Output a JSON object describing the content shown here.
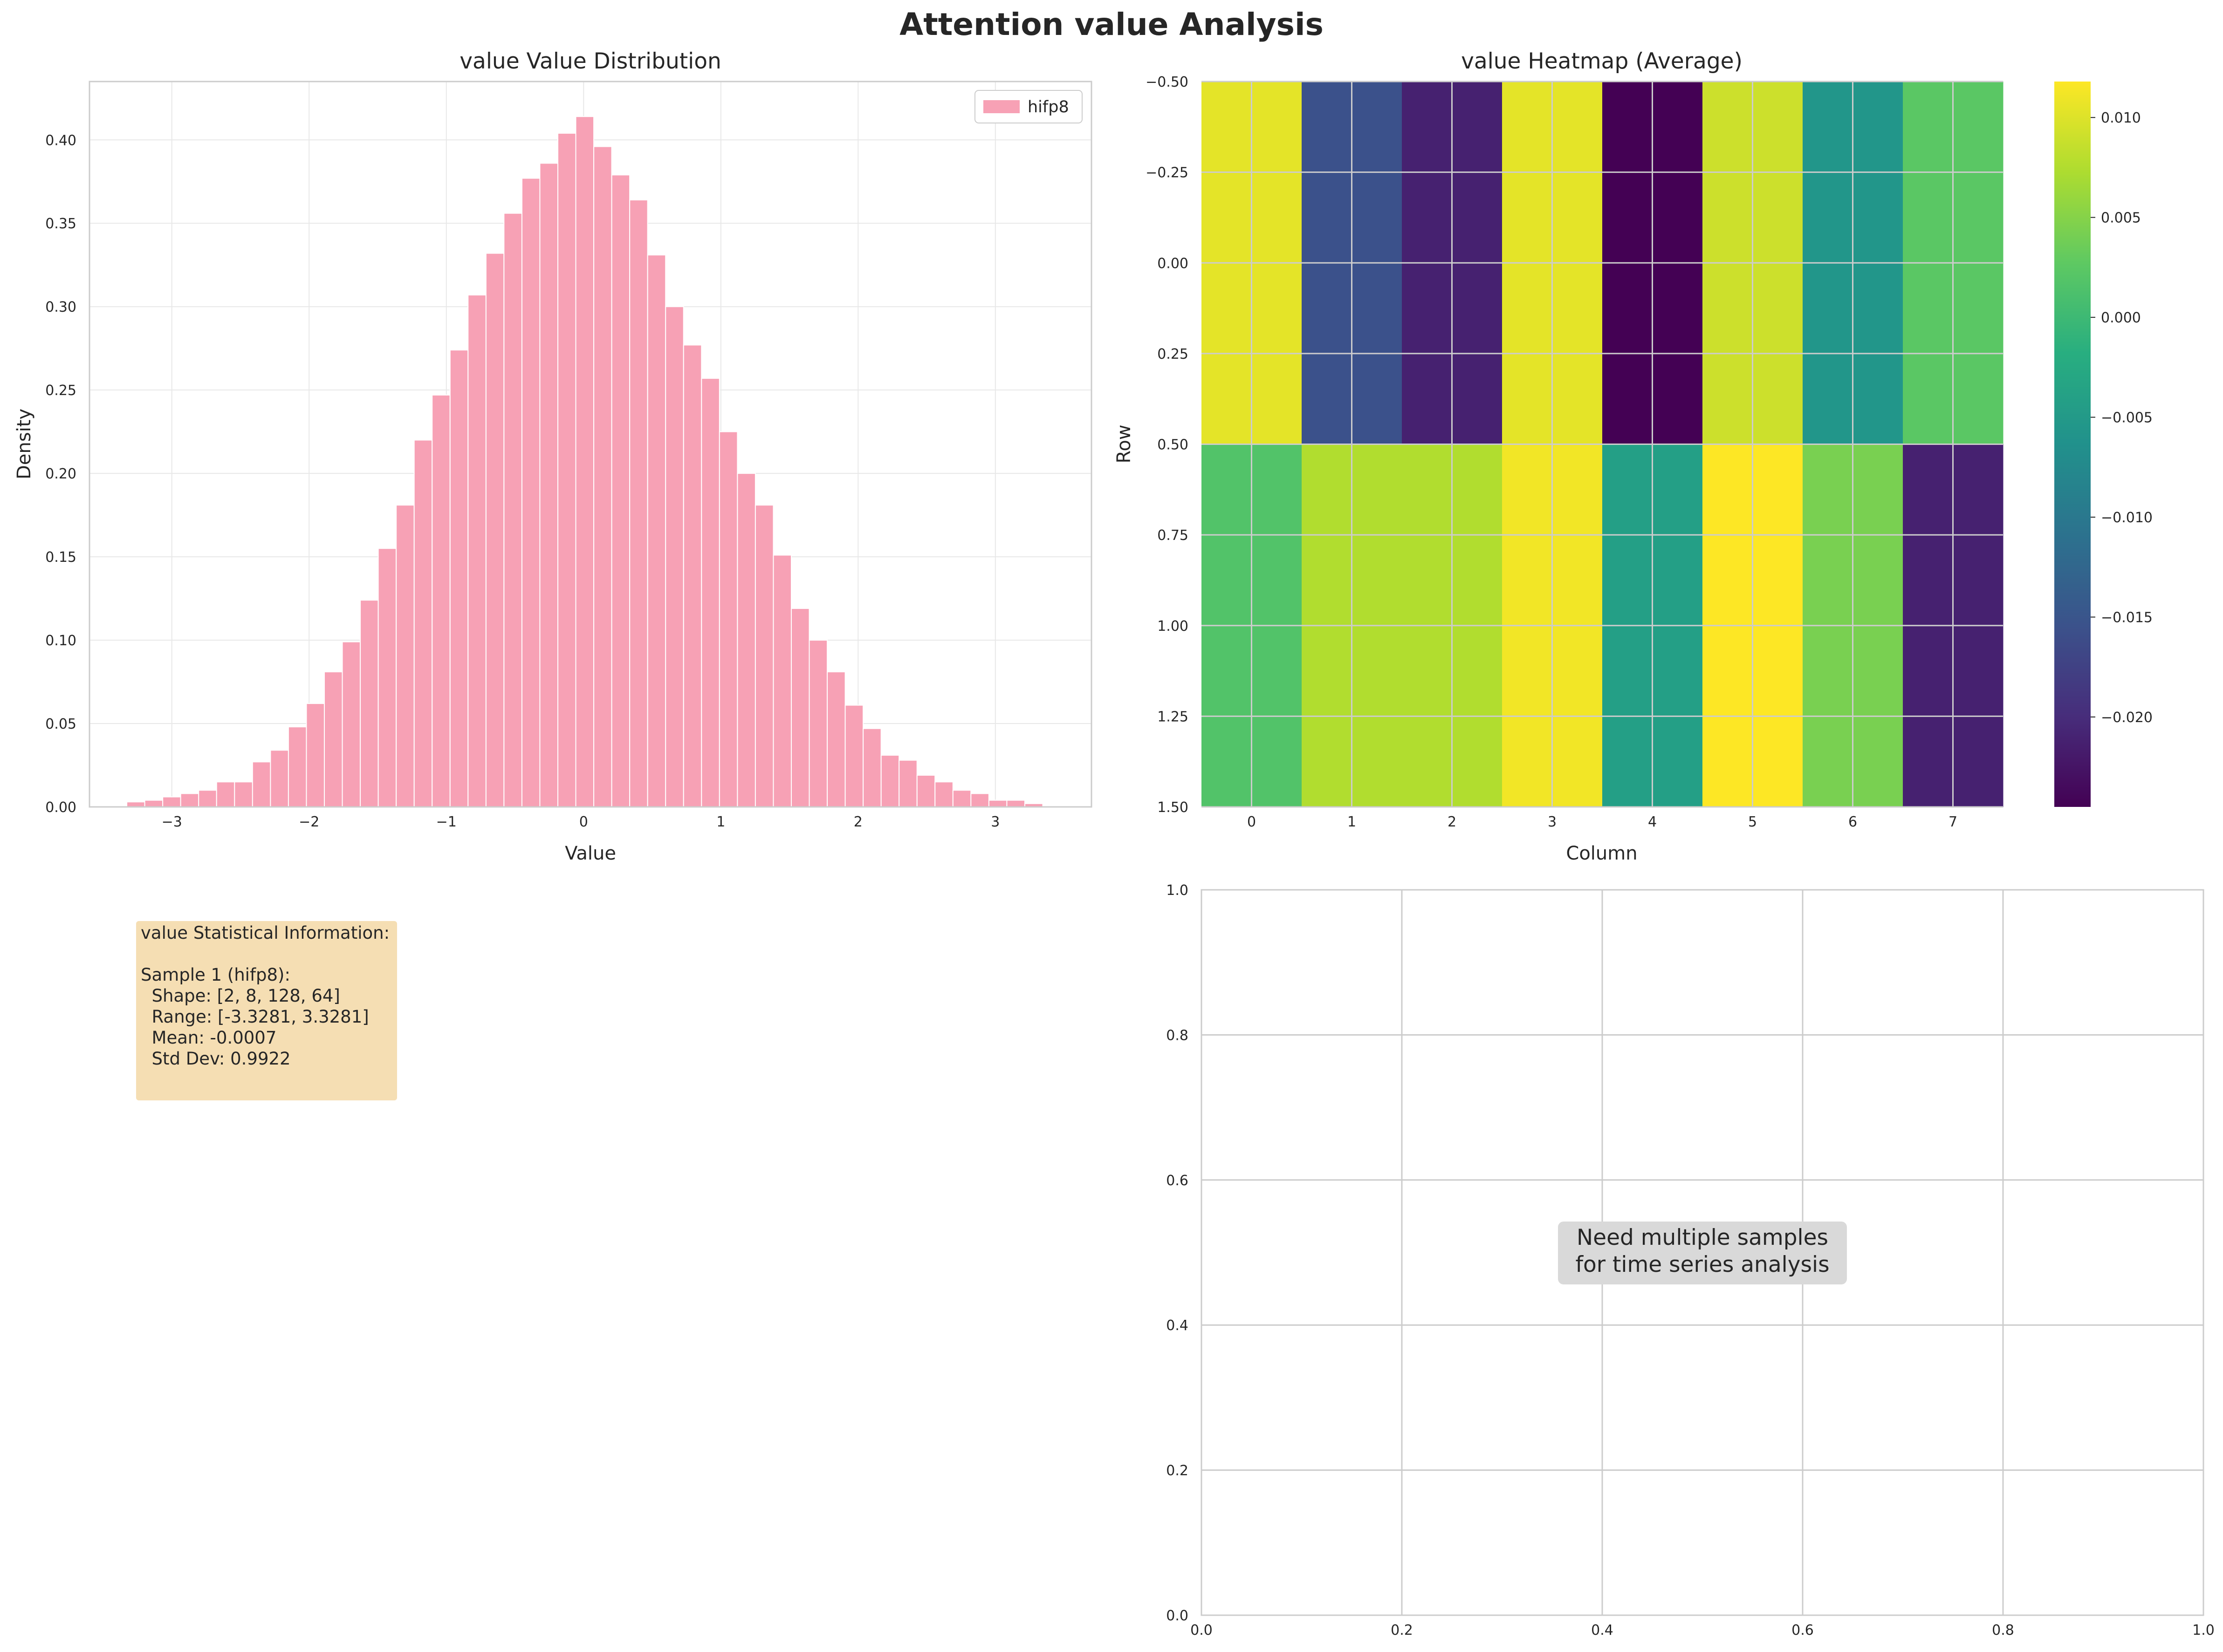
{
  "figure": {
    "title": "Attention value Analysis"
  },
  "colors": {
    "bar": "#f7a1b5",
    "grid": "#e8e8e8",
    "grid_dark": "#cccccc",
    "axes_edge": "#cccccc",
    "stats_box": "#f5deb3",
    "note_box": "#d9d9d9"
  },
  "chart_data": [
    {
      "type": "bar",
      "title": "value Value Distribution",
      "xlabel": "Value",
      "ylabel": "Density",
      "xlim": [
        -3.6,
        3.7
      ],
      "ylim": [
        0,
        0.435
      ],
      "xticks": [
        -3,
        -2,
        -1,
        0,
        1,
        2,
        3
      ],
      "xtick_labels": [
        "−3",
        "−2",
        "−1",
        "0",
        "1",
        "2",
        "3"
      ],
      "yticks": [
        0,
        0.05,
        0.1,
        0.15,
        0.2,
        0.25,
        0.3,
        0.35,
        0.4
      ],
      "ytick_labels": [
        "0.00",
        "0.05",
        "0.10",
        "0.15",
        "0.20",
        "0.25",
        "0.30",
        "0.35",
        "0.40"
      ],
      "grid": true,
      "legend": {
        "position": "top-right",
        "entries": [
          "hifp8"
        ]
      },
      "series": [
        {
          "name": "hifp8",
          "bin_edges": [
            -3.3281,
            -3.1973,
            -3.0664,
            -2.9356,
            -2.8047,
            -2.6739,
            -2.543,
            -2.4122,
            -2.2813,
            -2.1505,
            -2.0196,
            -1.8888,
            -1.7579,
            -1.6271,
            -1.4962,
            -1.3654,
            -1.2345,
            -1.1037,
            -0.9728,
            -0.842,
            -0.7111,
            -0.5803,
            -0.4494,
            -0.3186,
            -0.1877,
            -0.0569,
            0.074,
            0.2048,
            0.3357,
            0.4665,
            0.5974,
            0.7282,
            0.8591,
            0.9899,
            1.1208,
            1.2516,
            1.3825,
            1.5133,
            1.6442,
            1.775,
            1.9059,
            2.0367,
            2.1676,
            2.2984,
            2.4293,
            2.5601,
            2.691,
            2.8218,
            2.9527,
            3.0835,
            3.2144,
            3.3452
          ],
          "values": [
            0.003,
            0.004,
            0.006,
            0.008,
            0.01,
            0.015,
            0.015,
            0.027,
            0.034,
            0.048,
            0.062,
            0.081,
            0.099,
            0.124,
            0.155,
            0.181,
            0.22,
            0.247,
            0.274,
            0.307,
            0.332,
            0.356,
            0.377,
            0.386,
            0.404,
            0.414,
            0.396,
            0.379,
            0.364,
            0.331,
            0.3,
            0.277,
            0.257,
            0.225,
            0.2,
            0.181,
            0.151,
            0.119,
            0.1,
            0.081,
            0.061,
            0.047,
            0.031,
            0.028,
            0.019,
            0.015,
            0.01,
            0.008,
            0.004,
            0.004,
            0.002
          ]
        }
      ]
    },
    {
      "type": "heatmap",
      "title": "value Heatmap (Average)",
      "xlabel": "Column",
      "ylabel": "Row",
      "xlim": [
        -0.5,
        7.5
      ],
      "ylim": [
        1.5,
        -0.5
      ],
      "xticks": [
        0,
        1,
        2,
        3,
        4,
        5,
        6,
        7
      ],
      "xtick_labels": [
        "0",
        "1",
        "2",
        "3",
        "4",
        "5",
        "6",
        "7"
      ],
      "yticks": [
        -0.5,
        -0.25,
        0,
        0.25,
        0.5,
        0.75,
        1.0,
        1.25,
        1.5
      ],
      "ytick_labels": [
        "−0.50",
        "−0.25",
        "0.00",
        "0.25",
        "0.50",
        "0.75",
        "1.00",
        "1.25",
        "1.50"
      ],
      "colormap": "viridis",
      "vmin": -0.0245,
      "vmax": 0.0118,
      "colorbar": {
        "ticks": [
          0.01,
          0.005,
          0,
          -0.005,
          -0.01,
          -0.015,
          -0.02
        ],
        "tick_labels": [
          "0.010",
          "0.005",
          "0.000",
          "−0.005",
          "−0.010",
          "−0.015",
          "−0.020"
        ]
      },
      "values": [
        [
          0.0104,
          -0.0155,
          -0.0212,
          0.0104,
          -0.0245,
          0.009,
          -0.0056,
          0.0024
        ],
        [
          0.0017,
          0.0075,
          0.0075,
          0.0112,
          -0.0042,
          0.0118,
          0.0043,
          -0.0212
        ]
      ]
    },
    {
      "type": "scatter",
      "xlim": [
        0,
        1
      ],
      "ylim": [
        0,
        1
      ],
      "xticks": [
        0,
        0.2,
        0.4,
        0.6,
        0.8,
        1.0
      ],
      "xtick_labels": [
        "0.0",
        "0.2",
        "0.4",
        "0.6",
        "0.8",
        "1.0"
      ],
      "yticks": [
        0,
        0.2,
        0.4,
        0.6,
        0.8,
        1.0
      ],
      "ytick_labels": [
        "0.0",
        "0.2",
        "0.4",
        "0.6",
        "0.8",
        "1.0"
      ],
      "grid": true,
      "series": [],
      "annotation": [
        "Need multiple samples",
        "for time series analysis"
      ]
    }
  ],
  "stats_panel": {
    "lines": [
      "value Statistical Information:",
      "",
      "Sample 1 (hifp8):",
      "  Shape: [2, 8, 128, 64]",
      "  Range: [-3.3281, 3.3281]",
      "  Mean: -0.0007",
      "  Std Dev: 0.9922"
    ]
  }
}
